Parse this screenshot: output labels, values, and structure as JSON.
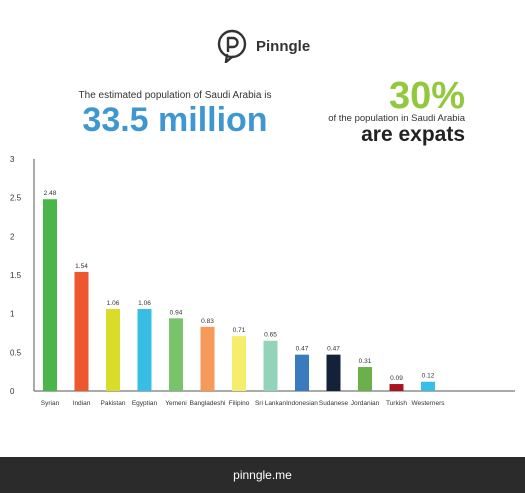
{
  "brand": {
    "name": "Pinngle",
    "footer": "pinngle.me"
  },
  "headline": {
    "intro": "The estimated population of Saudi Arabia is",
    "population": "33.5 million",
    "percent": "30%",
    "percent_desc": "of the population in Saudi Arabia",
    "percent_tail": "are expats"
  },
  "colors": {
    "blue": "#3f97d1",
    "green": "#92c83e",
    "footer_bg": "#2b2b2b"
  },
  "icons": {
    "logo": "chat-bubble-p-icon"
  },
  "chart_data": {
    "type": "bar",
    "categories": [
      "Syrian",
      "Indian",
      "Pakistan",
      "Egyptian",
      "Yemeni",
      "Bangladeshi",
      "Filipino",
      "Sri Lankan",
      "Indonesian",
      "Sudanese",
      "Jordanian",
      "Turkish",
      "Westerners"
    ],
    "values": [
      2.48,
      1.54,
      1.06,
      1.06,
      0.94,
      0.83,
      0.71,
      0.65,
      0.47,
      0.47,
      0.31,
      0.09,
      0.12
    ],
    "labels": [
      "2.48",
      "1.54",
      "1.06",
      "1.06",
      "0.94",
      "0.83",
      "0.71",
      "0.65",
      "0.47",
      "0.47",
      "0.31",
      "0.09",
      "0.12"
    ],
    "colors": [
      "#4ab64a",
      "#ee5630",
      "#d9dd2a",
      "#38bde4",
      "#79c36a",
      "#f59a5a",
      "#f6ee6b",
      "#92d3b9",
      "#3a7bc0",
      "#13213a",
      "#6bb04a",
      "#a8141d",
      "#38bde4"
    ],
    "yticks": [
      "0",
      "0.5",
      "1",
      "1.5",
      "2",
      "2.5",
      "3"
    ],
    "ylim": [
      0,
      3
    ],
    "grid": false
  }
}
